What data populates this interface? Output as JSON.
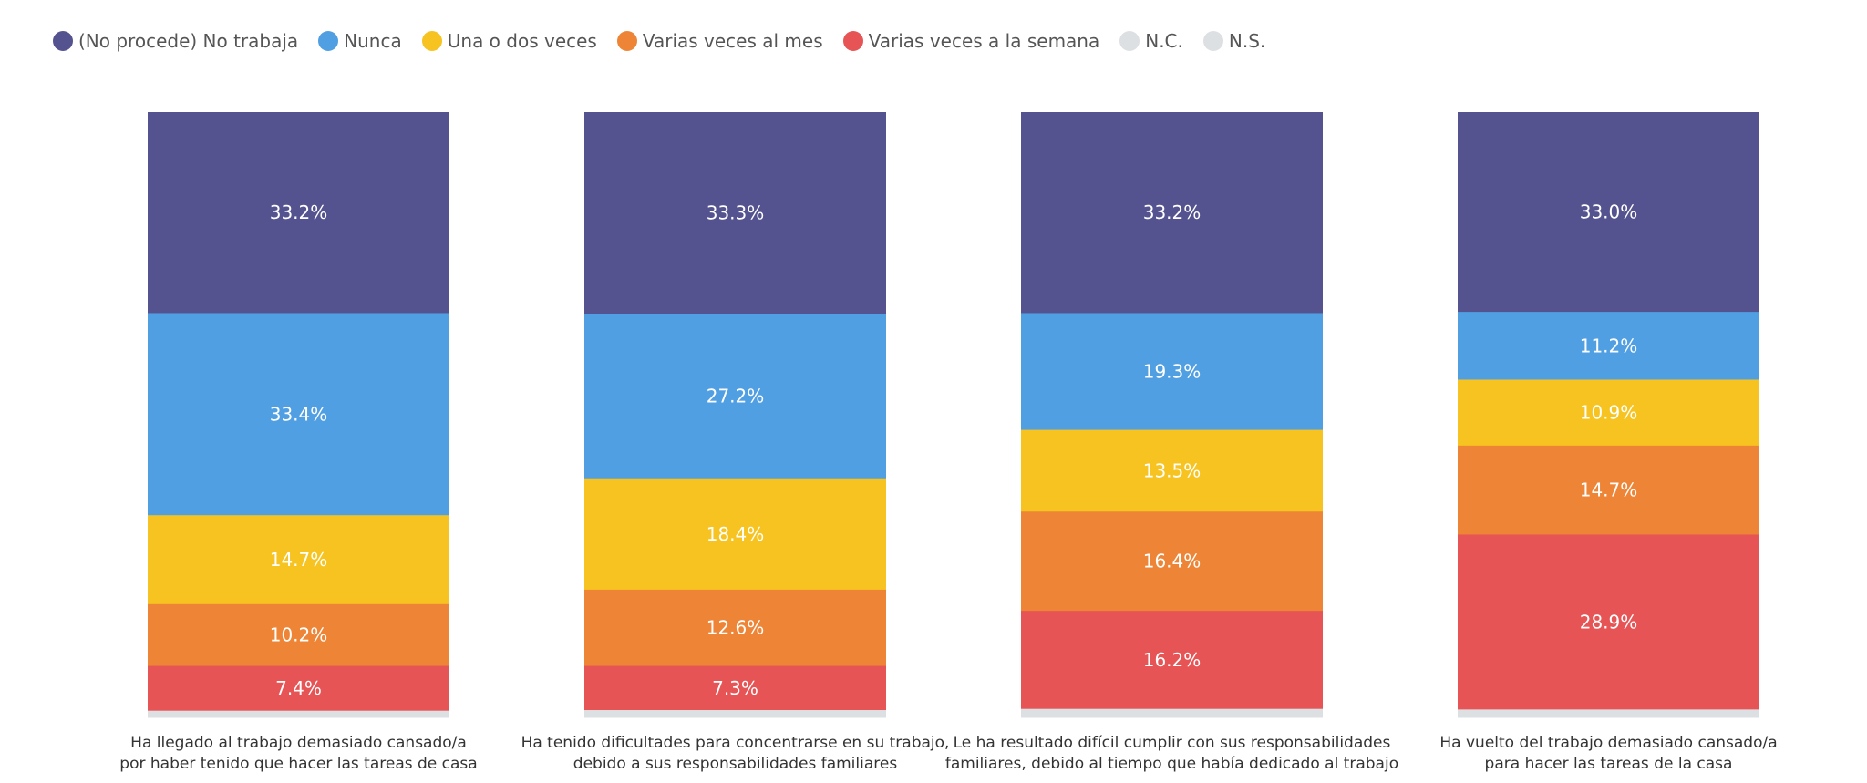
{
  "chart_data": {
    "type": "bar",
    "stacked": true,
    "normalized": true,
    "legend_position": "top-left",
    "categories": [
      [
        "Ha llegado al trabajo demasiado cansado/a",
        "por haber tenido que hacer las tareas de casa"
      ],
      [
        "Ha tenido dificultades para concentrarse en su trabajo,",
        "debido a sus responsabilidades familiares"
      ],
      [
        "Le ha resultado difícil cumplir con sus responsabilidades",
        "familiares, debido al tiempo que había dedicado al trabajo"
      ],
      [
        "Ha vuelto del trabajo demasiado cansado/a",
        "para hacer las tareas de la casa"
      ]
    ],
    "series": [
      {
        "name": "(No procede) No trabaja",
        "color": "#54538f",
        "values": [
          33.2,
          33.3,
          33.2,
          33.0
        ]
      },
      {
        "name": "Nunca",
        "color": "#509fe3",
        "values": [
          33.4,
          27.2,
          19.3,
          11.2
        ]
      },
      {
        "name": "Una o dos veces",
        "color": "#f6c320",
        "values": [
          14.7,
          18.4,
          13.5,
          10.9
        ]
      },
      {
        "name": "Varias veces al mes",
        "color": "#ee8536",
        "values": [
          10.2,
          12.6,
          16.4,
          14.7
        ]
      },
      {
        "name": "Varias veces a la semana",
        "color": "#e75455",
        "values": [
          7.4,
          7.3,
          16.2,
          28.9
        ]
      },
      {
        "name": "N.C.",
        "color": "#dde0e2",
        "values": [
          0.6,
          0.6,
          0.7,
          0.6
        ]
      },
      {
        "name": "N.S.",
        "color": "#dde0e2",
        "values": [
          0.5,
          0.6,
          0.7,
          0.7
        ]
      }
    ],
    "label_threshold": 5,
    "label_suffix": "%"
  }
}
